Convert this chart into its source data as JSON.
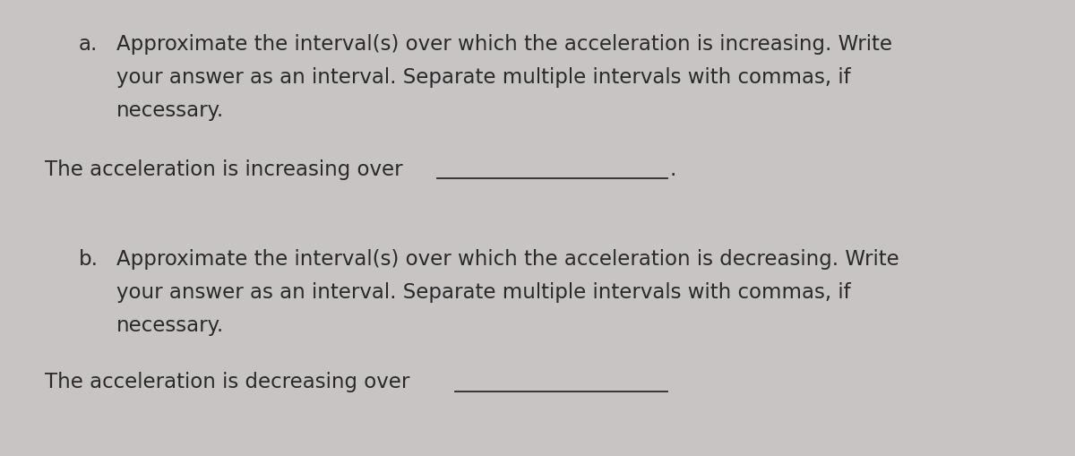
{
  "background_color": "#c8c4c4",
  "text_color": "#2a2a2a",
  "fig_width": 12.0,
  "fig_height": 5.1,
  "part_a_label": "a.",
  "part_a_line1": "Approximate the interval(s) over which the acceleration is increasing. Write",
  "part_a_line2": "your answer as an interval. Separate multiple intervals with commas, if",
  "part_a_line3": "necessary.",
  "part_a_answer_text": "The acceleration is increasing over",
  "part_b_label": "b.",
  "part_b_line1": "Approximate the interval(s) over which the acceleration is decreasing. Write",
  "part_b_line2": "your answer as an interval. Separate multiple intervals with commas, if",
  "part_b_line3": "necessary.",
  "part_b_answer_text": "The acceleration is decreasing over",
  "font_size": 16.5,
  "font_family": "DejaVu Sans"
}
